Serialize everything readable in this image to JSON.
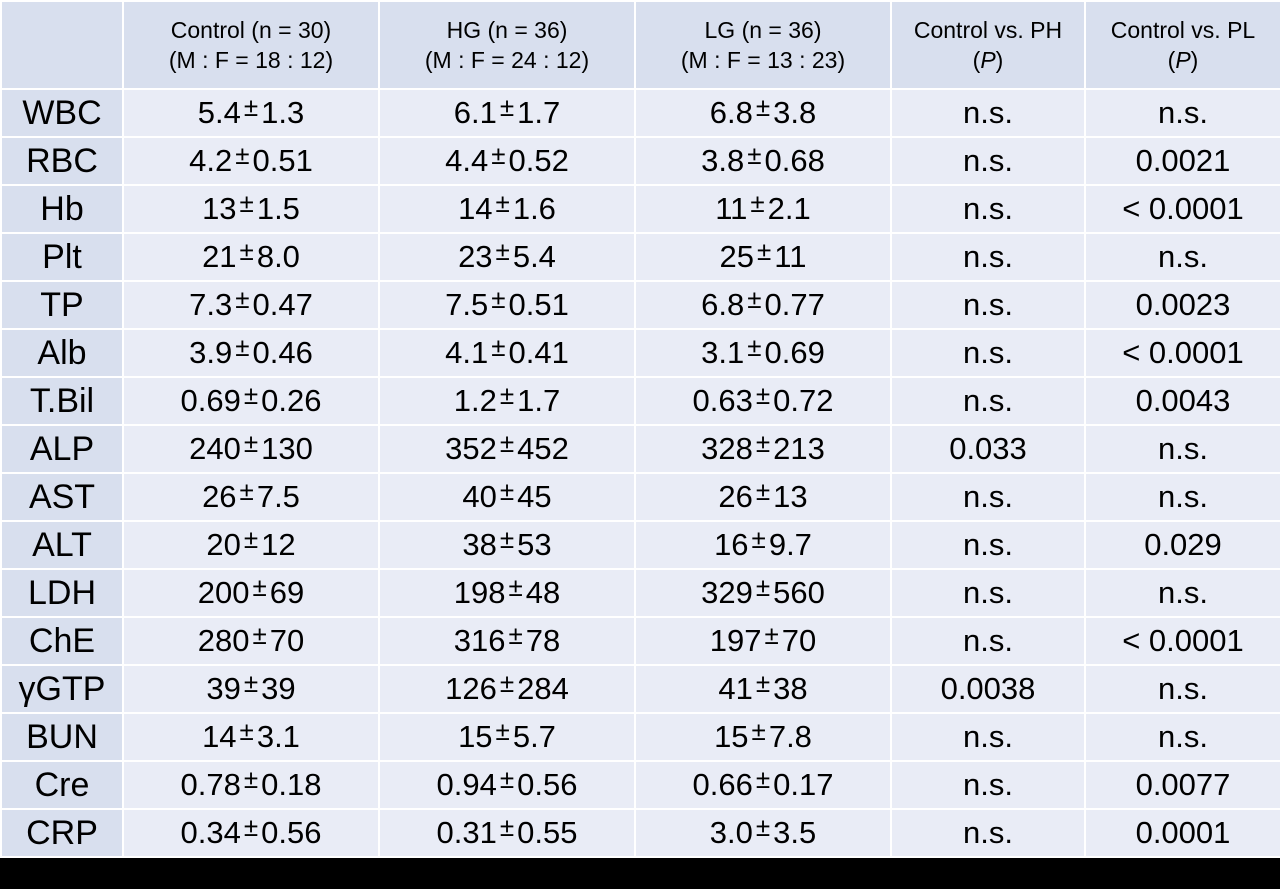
{
  "header": {
    "col1": {
      "line1": "Control (n = 30)",
      "line2": "(M : F = 18 : 12)"
    },
    "col2": {
      "line1": "HG (n = 36)",
      "line2": "(M : F = 24 : 12)"
    },
    "col3": {
      "line1": "LG (n = 36)",
      "line2": "(M : F = 13 : 23)"
    },
    "col4": {
      "line1": "Control vs. PH",
      "p_open": "(",
      "p_letter": "P",
      "p_close": ")"
    },
    "col5": {
      "line1": "Control vs. PL",
      "p_open": "(",
      "p_letter": "P",
      "p_close": ")"
    }
  },
  "pm_symbol": "±",
  "colors": {
    "high": "#e61c1c",
    "low": "#1b7dc2",
    "header_bg": "#d8dfee",
    "cell_bg": "#e9ecf6"
  },
  "rows": [
    {
      "param": "WBC",
      "control": {
        "mean": "5.4",
        "sd": "1.3"
      },
      "hg": {
        "mean": "6.1",
        "sd": "1.7",
        "flag": ""
      },
      "lg": {
        "mean": "6.8",
        "sd": "3.8",
        "flag": ""
      },
      "p_ph": "n.s.",
      "p_pl": "n.s."
    },
    {
      "param": "RBC",
      "control": {
        "mean": "4.2",
        "sd": "0.51"
      },
      "hg": {
        "mean": "4.4",
        "sd": "0.52",
        "flag": ""
      },
      "lg": {
        "mean": "3.8",
        "sd": "0.68",
        "flag": "low"
      },
      "p_ph": "n.s.",
      "p_pl": "0.0021"
    },
    {
      "param": "Hb",
      "control": {
        "mean": "13",
        "sd": "1.5"
      },
      "hg": {
        "mean": "14",
        "sd": "1.6",
        "flag": ""
      },
      "lg": {
        "mean": "11",
        "sd": "2.1",
        "flag": "low"
      },
      "p_ph": "n.s.",
      "p_pl": "< 0.0001"
    },
    {
      "param": "Plt",
      "control": {
        "mean": "21",
        "sd": "8.0"
      },
      "hg": {
        "mean": "23",
        "sd": "5.4",
        "flag": ""
      },
      "lg": {
        "mean": "25",
        "sd": "11",
        "flag": ""
      },
      "p_ph": "n.s.",
      "p_pl": "n.s."
    },
    {
      "param": "TP",
      "control": {
        "mean": "7.3",
        "sd": "0.47"
      },
      "hg": {
        "mean": "7.5",
        "sd": "0.51",
        "flag": ""
      },
      "lg": {
        "mean": "6.8",
        "sd": "0.77",
        "flag": "low"
      },
      "p_ph": "n.s.",
      "p_pl": "0.0023"
    },
    {
      "param": "Alb",
      "control": {
        "mean": "3.9",
        "sd": "0.46"
      },
      "hg": {
        "mean": "4.1",
        "sd": "0.41",
        "flag": ""
      },
      "lg": {
        "mean": "3.1",
        "sd": "0.69",
        "flag": "low"
      },
      "p_ph": "n.s.",
      "p_pl": "< 0.0001"
    },
    {
      "param": "T.Bil",
      "control": {
        "mean": "0.69",
        "sd": "0.26"
      },
      "hg": {
        "mean": "1.2",
        "sd": "1.7",
        "flag": ""
      },
      "lg": {
        "mean": "0.63",
        "sd": "0.72",
        "flag": "low"
      },
      "p_ph": "n.s.",
      "p_pl": "0.0043"
    },
    {
      "param": "ALP",
      "control": {
        "mean": "240",
        "sd": "130"
      },
      "hg": {
        "mean": "352",
        "sd": "452",
        "flag": "high"
      },
      "lg": {
        "mean": "328",
        "sd": "213",
        "flag": ""
      },
      "p_ph": "0.033",
      "p_pl": "n.s."
    },
    {
      "param": "AST",
      "control": {
        "mean": "26",
        "sd": "7.5"
      },
      "hg": {
        "mean": "40",
        "sd": "45",
        "flag": ""
      },
      "lg": {
        "mean": "26",
        "sd": "13",
        "flag": ""
      },
      "p_ph": "n.s.",
      "p_pl": "n.s."
    },
    {
      "param": "ALT",
      "control": {
        "mean": "20",
        "sd": "12"
      },
      "hg": {
        "mean": "38",
        "sd": "53",
        "flag": ""
      },
      "lg": {
        "mean": "16",
        "sd": "9.7",
        "flag": ""
      },
      "p_ph": "n.s.",
      "p_pl": "0.029"
    },
    {
      "param": "LDH",
      "control": {
        "mean": "200",
        "sd": "69"
      },
      "hg": {
        "mean": "198",
        "sd": "48",
        "flag": ""
      },
      "lg": {
        "mean": "329",
        "sd": "560",
        "flag": ""
      },
      "p_ph": "n.s.",
      "p_pl": "n.s."
    },
    {
      "param": "ChE",
      "control": {
        "mean": "280",
        "sd": "70"
      },
      "hg": {
        "mean": "316",
        "sd": "78",
        "flag": ""
      },
      "lg": {
        "mean": "197",
        "sd": "70",
        "flag": "low"
      },
      "p_ph": "n.s.",
      "p_pl": "< 0.0001"
    },
    {
      "param": "γGTP",
      "control": {
        "mean": "39",
        "sd": "39"
      },
      "hg": {
        "mean": "126",
        "sd": "284",
        "flag": "high"
      },
      "lg": {
        "mean": "41",
        "sd": "38",
        "flag": ""
      },
      "p_ph": "0.0038",
      "p_pl": "n.s."
    },
    {
      "param": "BUN",
      "control": {
        "mean": "14",
        "sd": "3.1"
      },
      "hg": {
        "mean": "15",
        "sd": "5.7",
        "flag": ""
      },
      "lg": {
        "mean": "15",
        "sd": "7.8",
        "flag": ""
      },
      "p_ph": "n.s.",
      "p_pl": "n.s."
    },
    {
      "param": "Cre",
      "control": {
        "mean": "0.78",
        "sd": "0.18"
      },
      "hg": {
        "mean": "0.94",
        "sd": "0.56",
        "flag": ""
      },
      "lg": {
        "mean": "0.66",
        "sd": "0.17",
        "flag": "low"
      },
      "p_ph": "n.s.",
      "p_pl": "0.0077"
    },
    {
      "param": "CRP",
      "control": {
        "mean": "0.34",
        "sd": "0.56"
      },
      "hg": {
        "mean": "0.31",
        "sd": "0.55",
        "flag": ""
      },
      "lg": {
        "mean": "3.0",
        "sd": "3.5",
        "flag": "high"
      },
      "p_ph": "n.s.",
      "p_pl": "0.0001"
    }
  ]
}
